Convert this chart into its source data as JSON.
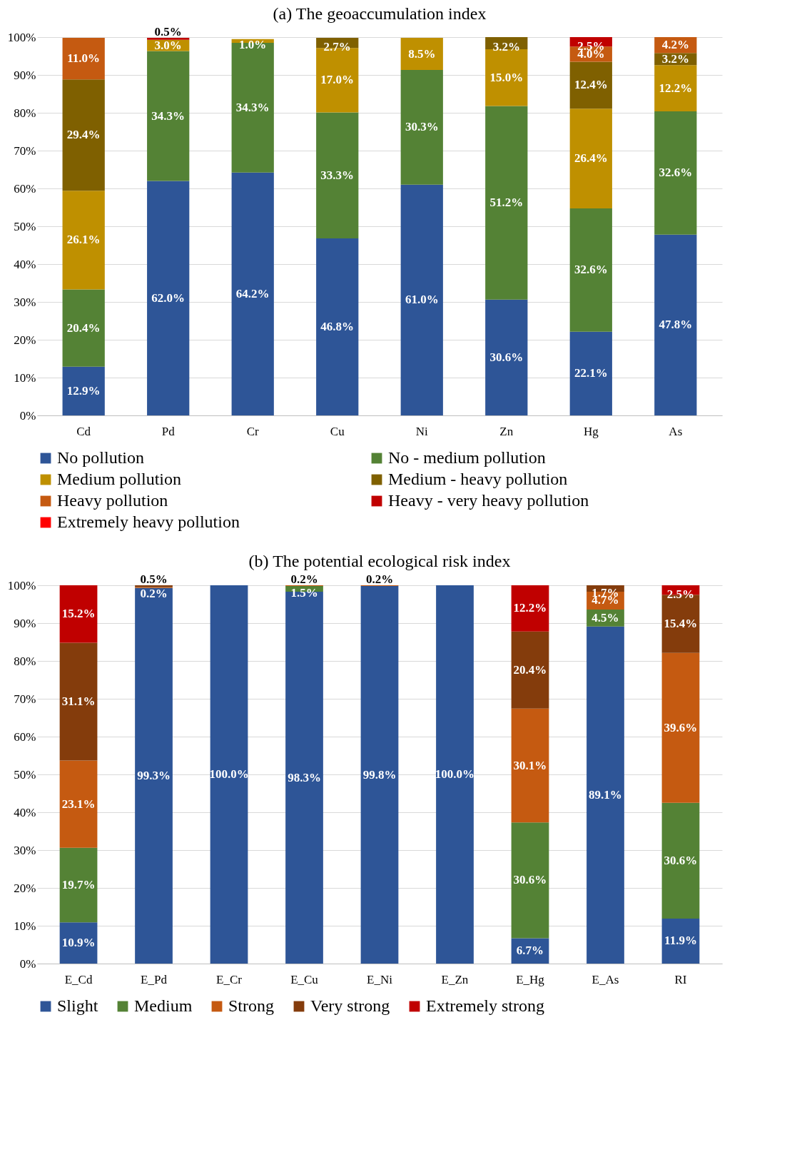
{
  "chart_data": [
    {
      "type": "bar",
      "title": "(a) The geoaccumulation index",
      "stacked": true,
      "legend": "bottom",
      "grid": "y",
      "categories": [
        "Cd",
        "Pd",
        "Cr",
        "Cu",
        "Ni",
        "Zn",
        "Hg",
        "As"
      ],
      "ylim": [
        0,
        100
      ],
      "yticks": [
        {
          "value": 0,
          "label": "0%"
        },
        {
          "value": 10,
          "label": "10%"
        },
        {
          "value": 20,
          "label": "20%"
        },
        {
          "value": 30,
          "label": "30%"
        },
        {
          "value": 40,
          "label": "40%"
        },
        {
          "value": 50,
          "label": "50%"
        },
        {
          "value": 60,
          "label": "60%"
        },
        {
          "value": 70,
          "label": "70%"
        },
        {
          "value": 80,
          "label": "80%"
        },
        {
          "value": 90,
          "label": "90%"
        },
        {
          "value": 100,
          "label": "100%"
        }
      ],
      "series": [
        {
          "name": "No pollution",
          "color": "#2e5597",
          "values": [
            12.9,
            62.0,
            64.2,
            46.8,
            61.0,
            30.6,
            22.1,
            47.8
          ],
          "value_labels": [
            "12.9%",
            "62.0%",
            "64.2%",
            "46.8%",
            "61.0%",
            "30.6%",
            "22.1%",
            "47.8%"
          ]
        },
        {
          "name": "No - medium pollution",
          "color": "#548235",
          "values": [
            20.4,
            34.3,
            34.3,
            33.3,
            30.3,
            51.2,
            32.6,
            32.6
          ],
          "value_labels": [
            "20.4%",
            "34.3%",
            "34.3%",
            "33.3%",
            "30.3%",
            "51.2%",
            "32.6%",
            "32.6%"
          ]
        },
        {
          "name": "Medium pollution",
          "color": "#bf9000",
          "values": [
            26.1,
            3.0,
            1.0,
            17.0,
            8.5,
            15.0,
            26.4,
            12.2
          ],
          "value_labels": [
            "26.1%",
            "3.0%",
            "1.0%",
            "17.0%",
            "8.5%",
            "15.0%",
            "26.4%",
            "12.2%"
          ]
        },
        {
          "name": "Medium - heavy pollution",
          "color": "#7f6000",
          "values": [
            29.4,
            null,
            null,
            2.7,
            null,
            3.2,
            12.4,
            3.2
          ],
          "value_labels": [
            "29.4%",
            null,
            null,
            "2.7%",
            null,
            "3.2%",
            "12.4%",
            "3.2%"
          ]
        },
        {
          "name": "Heavy pollution",
          "color": "#c55a11",
          "values": [
            11.0,
            null,
            null,
            null,
            null,
            null,
            4.0,
            4.2
          ],
          "value_labels": [
            "11.0%",
            null,
            null,
            null,
            null,
            null,
            "4.0%",
            "4.2%"
          ]
        },
        {
          "name": "Heavy - very heavy pollution",
          "color": "#c00000",
          "values": [
            null,
            0.5,
            null,
            null,
            null,
            null,
            2.5,
            null
          ],
          "value_labels": [
            null,
            "0.5%",
            null,
            null,
            null,
            null,
            "2.5%",
            null
          ]
        },
        {
          "name": "Extremely heavy pollution",
          "color": "#ff0000",
          "values": [
            null,
            null,
            null,
            null,
            null,
            null,
            null,
            null
          ]
        }
      ]
    },
    {
      "type": "bar",
      "title": "(b) The potential ecological risk index",
      "stacked": true,
      "legend": "bottom",
      "grid": "y",
      "categories": [
        "E_Cd",
        "E_Pd",
        "E_Cr",
        "E_Cu",
        "E_Ni",
        "E_Zn",
        "E_Hg",
        "E_As",
        "RI"
      ],
      "ylim": [
        0,
        100
      ],
      "yticks": [
        {
          "value": 0,
          "label": "0%"
        },
        {
          "value": 10,
          "label": "10%"
        },
        {
          "value": 20,
          "label": "20%"
        },
        {
          "value": 30,
          "label": "30%"
        },
        {
          "value": 40,
          "label": "40%"
        },
        {
          "value": 50,
          "label": "50%"
        },
        {
          "value": 60,
          "label": "60%"
        },
        {
          "value": 70,
          "label": "70%"
        },
        {
          "value": 80,
          "label": "80%"
        },
        {
          "value": 90,
          "label": "90%"
        },
        {
          "value": 100,
          "label": "100%"
        }
      ],
      "series": [
        {
          "name": "Slight",
          "color": "#2e5597",
          "values": [
            10.9,
            99.3,
            100.0,
            98.3,
            99.8,
            100.0,
            6.7,
            89.1,
            11.9
          ],
          "value_labels": [
            "10.9%",
            "99.3%",
            "100.0%",
            "98.3%",
            "99.8%",
            "100.0%",
            "6.7%",
            "89.1%",
            "11.9%"
          ]
        },
        {
          "name": "Medium",
          "color": "#548235",
          "values": [
            19.7,
            null,
            null,
            1.5,
            null,
            null,
            30.6,
            4.5,
            30.6
          ],
          "value_labels": [
            "19.7%",
            null,
            null,
            "1.5%",
            null,
            null,
            "30.6%",
            "4.5%",
            "30.6%"
          ]
        },
        {
          "name": "Strong",
          "color": "#c55a11",
          "values": [
            23.1,
            0.2,
            null,
            0.2,
            0.2,
            null,
            30.1,
            4.7,
            39.6
          ],
          "value_labels": [
            "23.1%",
            "0.2%",
            null,
            "0.2%",
            "0.2%",
            null,
            "30.1%",
            "4.7%",
            "39.6%"
          ]
        },
        {
          "name": "Very strong",
          "color": "#843c0c",
          "values": [
            31.1,
            0.5,
            null,
            null,
            null,
            null,
            20.4,
            1.7,
            15.4
          ],
          "value_labels": [
            "31.1%",
            "0.5%",
            null,
            null,
            null,
            null,
            "20.4%",
            "1.7%",
            "15.4%"
          ]
        },
        {
          "name": "Extremely strong",
          "color": "#c00000",
          "values": [
            15.2,
            null,
            null,
            null,
            null,
            null,
            12.2,
            null,
            2.5
          ],
          "value_labels": [
            "15.2%",
            null,
            null,
            null,
            null,
            null,
            "12.2%",
            null,
            "2.5%"
          ]
        }
      ]
    }
  ]
}
